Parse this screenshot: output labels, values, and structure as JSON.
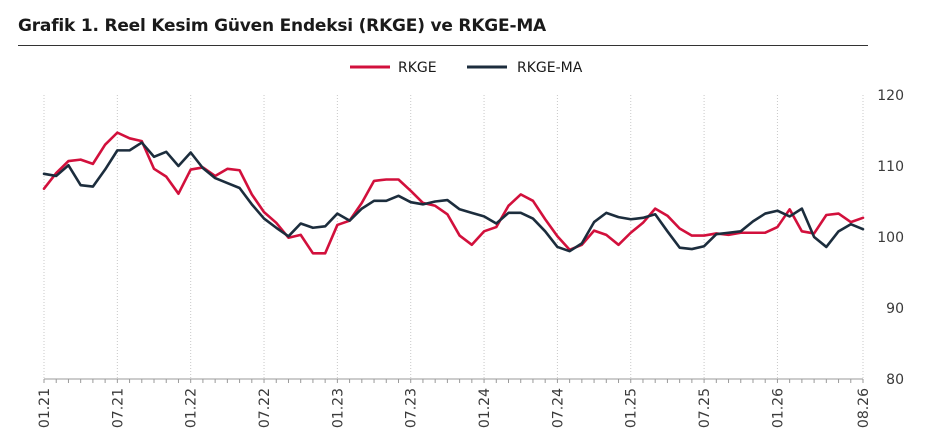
{
  "title": "Grafik 1. Reel Kesim Güven Endeksi (RKGE) ve RKGE-MA",
  "chart_data": {
    "type": "line",
    "title": "Grafik 1. Reel Kesim Güven Endeksi (RKGE) ve RKGE-MA",
    "xlabel": "",
    "ylabel": "",
    "ylim": [
      80,
      120
    ],
    "yticks": [
      "80",
      "90",
      "100",
      "110",
      "120"
    ],
    "xticks": [
      "01.21",
      "07.21",
      "01.22",
      "07.22",
      "01.23",
      "07.23",
      "01.24",
      "07.24",
      "01.25",
      "07.25",
      "01.26",
      "08.26"
    ],
    "grid": "vertical",
    "legend": "top-center",
    "x": [
      "01.21",
      "02.21",
      "03.21",
      "04.21",
      "05.21",
      "06.21",
      "07.21",
      "08.21",
      "09.21",
      "10.21",
      "11.21",
      "12.21",
      "01.22",
      "02.22",
      "03.22",
      "04.22",
      "05.22",
      "06.22",
      "07.22",
      "08.22",
      "09.22",
      "10.22",
      "11.22",
      "12.22",
      "01.23",
      "02.23",
      "03.23",
      "04.23",
      "05.23",
      "06.23",
      "07.23",
      "08.23",
      "09.23",
      "10.23",
      "11.23",
      "12.23",
      "01.24",
      "02.24",
      "03.24",
      "04.24",
      "05.24",
      "06.24",
      "07.24",
      "08.24",
      "09.24",
      "10.24",
      "11.24",
      "12.24",
      "01.25",
      "02.25",
      "03.25",
      "04.25",
      "05.25",
      "06.25",
      "07.25",
      "08.25",
      "09.25",
      "10.25",
      "11.25",
      "12.25",
      "01.26",
      "02.26",
      "03.26",
      "04.26",
      "05.26",
      "06.26",
      "07.26",
      "08.26"
    ],
    "series": [
      {
        "name": "RKGE",
        "color": "#d2103c",
        "values": [
          106.8,
          109.0,
          110.7,
          110.9,
          110.3,
          113.0,
          114.7,
          113.9,
          113.5,
          109.6,
          108.5,
          106.1,
          109.5,
          109.8,
          108.6,
          109.6,
          109.4,
          106.0,
          103.5,
          102.0,
          99.9,
          100.3,
          97.7,
          97.7,
          101.7,
          102.3,
          104.8,
          107.9,
          108.1,
          108.1,
          106.5,
          104.8,
          104.4,
          103.2,
          100.2,
          98.9,
          100.8,
          101.4,
          104.4,
          106.0,
          105.1,
          102.5,
          100.1,
          98.2,
          98.9,
          100.9,
          100.3,
          98.9,
          100.6,
          102.0,
          104.0,
          103.0,
          101.2,
          100.2,
          100.2,
          100.5,
          100.3,
          100.6,
          100.6,
          100.6,
          101.4,
          103.9,
          100.8,
          100.5,
          103.1,
          103.3,
          102.1,
          102.7
        ]
      },
      {
        "name": "RKGE-MA",
        "color": "#1c2d3d",
        "values": [
          108.9,
          108.6,
          110.1,
          107.3,
          107.1,
          109.5,
          112.2,
          112.2,
          113.3,
          111.3,
          112.0,
          110.0,
          111.9,
          109.7,
          108.3,
          107.6,
          106.9,
          104.6,
          102.6,
          101.3,
          100.1,
          101.9,
          101.3,
          101.5,
          103.3,
          102.3,
          104.0,
          105.1,
          105.1,
          105.8,
          104.9,
          104.6,
          105.0,
          105.2,
          103.9,
          103.4,
          102.9,
          101.9,
          103.4,
          103.4,
          102.6,
          100.8,
          98.6,
          98.0,
          99.1,
          102.1,
          103.4,
          102.8,
          102.5,
          102.7,
          103.2,
          100.8,
          98.5,
          98.3,
          98.7,
          100.4,
          100.6,
          100.8,
          102.2,
          103.3,
          103.7,
          102.9,
          104.0,
          100.0,
          98.6,
          100.8,
          101.8,
          101.1
        ]
      }
    ]
  }
}
